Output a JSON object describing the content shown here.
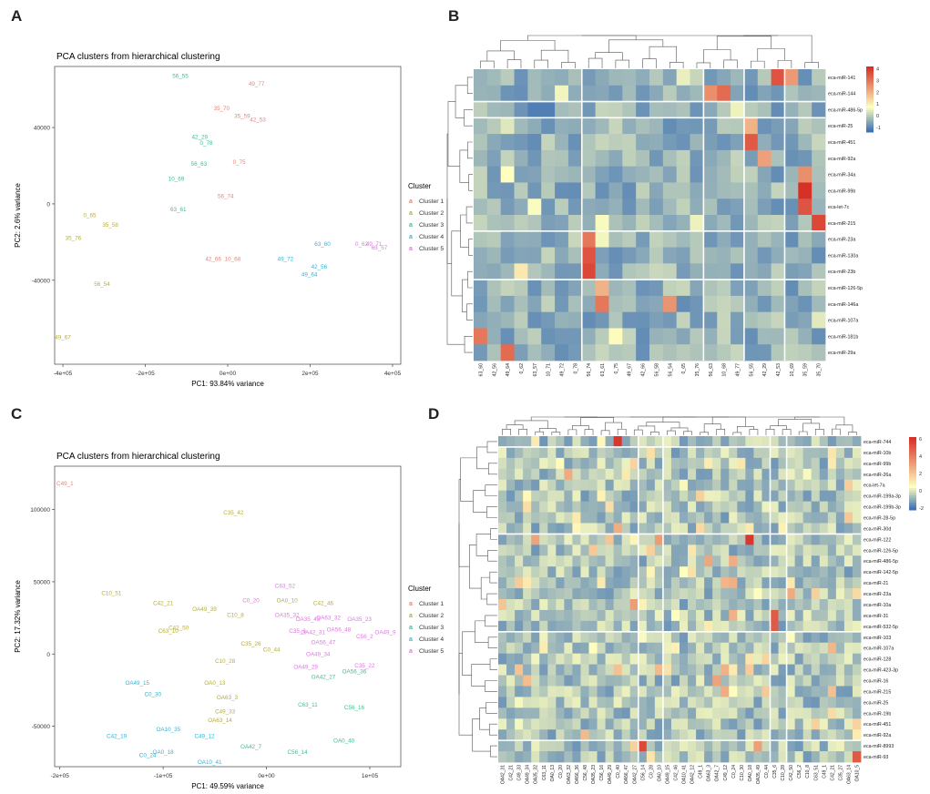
{
  "panels": {
    "A": "A",
    "B": "B",
    "C": "C",
    "D": "D"
  },
  "chart_data": [
    {
      "panel": "A",
      "type": "scatter",
      "title": "PCA clusters from hierarchical clustering",
      "xlabel": "PC1: 93.84% variance",
      "ylabel": "PC2: 2.6% variance",
      "xlim": [
        -420000,
        420000
      ],
      "ylim": [
        -84000,
        72000
      ],
      "xticks": [
        -400000,
        -200000,
        0,
        200000,
        400000
      ],
      "xtick_labels": [
        "-4e+05",
        "-2e+05",
        "0e+00",
        "2e+05",
        "4e+05"
      ],
      "yticks": [
        -40000,
        0,
        40000
      ],
      "ytick_labels": [
        "-40000",
        "0",
        "40000"
      ],
      "legend_title": "Cluster",
      "series": [
        {
          "name": "Cluster 1",
          "color": "#e0877c",
          "points": [
            {
              "label": "49_77",
              "x": 70000,
              "y": 63000
            },
            {
              "label": "35_70",
              "x": -15000,
              "y": 50000
            },
            {
              "label": "35_59",
              "x": 35000,
              "y": 46000
            },
            {
              "label": "42_53",
              "x": 73000,
              "y": 44000
            },
            {
              "label": "0_75",
              "x": 28000,
              "y": 22000
            },
            {
              "label": "56_74",
              "x": -5000,
              "y": 4000
            },
            {
              "label": "42_66",
              "x": -35000,
              "y": -29000
            },
            {
              "label": "10_68",
              "x": 12000,
              "y": -29000
            }
          ]
        },
        {
          "name": "Cluster 2",
          "color": "#b5ad3b",
          "points": [
            {
              "label": "0_65",
              "x": -335000,
              "y": -6000
            },
            {
              "label": "35_58",
              "x": -285000,
              "y": -11000
            },
            {
              "label": "35_76",
              "x": -375000,
              "y": -18000
            },
            {
              "label": "56_54",
              "x": -305000,
              "y": -42000
            },
            {
              "label": "49_67",
              "x": -400000,
              "y": -70000
            }
          ]
        },
        {
          "name": "Cluster 3",
          "color": "#3ebf8c",
          "points": [
            {
              "label": "56_55",
              "x": -115000,
              "y": 67000
            },
            {
              "label": "42_29",
              "x": -68000,
              "y": 35000
            },
            {
              "label": "0_78",
              "x": -52000,
              "y": 32000
            },
            {
              "label": "56_63",
              "x": -70000,
              "y": 21000
            },
            {
              "label": "10_69",
              "x": -125000,
              "y": 13000
            },
            {
              "label": "63_61",
              "x": -120000,
              "y": -3000
            }
          ]
        },
        {
          "name": "Cluster 4",
          "color": "#34b4d2",
          "points": [
            {
              "label": "63_60",
              "x": 230000,
              "y": -21000
            },
            {
              "label": "49_72",
              "x": 140000,
              "y": -29000
            },
            {
              "label": "42_56",
              "x": 222000,
              "y": -33000
            },
            {
              "label": "49_64",
              "x": 198000,
              "y": -37000
            }
          ]
        },
        {
          "name": "Cluster 5",
          "color": "#df78df",
          "points": [
            {
              "label": "0_62",
              "x": 325000,
              "y": -21000
            },
            {
              "label": "49_71",
              "x": 355000,
              "y": -21000
            },
            {
              "label": "63_57",
              "x": 368000,
              "y": -23000
            }
          ]
        }
      ]
    },
    {
      "panel": "B",
      "type": "heatmap",
      "rows": [
        "eca-miR-141",
        "eca-miR-144",
        "eca-miR-486-5p",
        "eca-miR-25",
        "eca-miR-451",
        "eca-miR-92a",
        "eca-miR-34a",
        "eca-miR-99b",
        "eca-let-7c",
        "eca-miR-215",
        "eca-miR-23a",
        "eca-miR-130a",
        "eca-miR-23b",
        "eca-miR-126-5p",
        "eca-miR-146a",
        "eca-miR-107a",
        "eca-miR-181b",
        "eca-miR-29a"
      ],
      "columns": [
        "63_60",
        "42_56",
        "49_64",
        "0_62",
        "63_57",
        "10_71",
        "49_72",
        "0_78",
        "56_74",
        "63_61",
        "0_75",
        "49_67",
        "42_66",
        "56_58",
        "56_54",
        "0_65",
        "35_76",
        "56_63",
        "10_68",
        "49_77",
        "56_55",
        "42_29",
        "42_53",
        "10_69",
        "35_59",
        "35_70"
      ],
      "legend_ticks": [
        -1,
        0,
        1,
        2,
        3,
        4
      ],
      "color_scale": [
        "#3f72b4",
        "#ffffbf",
        "#d73027"
      ],
      "highlights": [
        {
          "row": "eca-miR-141",
          "col": "42_53",
          "value": 3.6
        },
        {
          "row": "eca-miR-141",
          "col": "10_69",
          "value": 2.4
        },
        {
          "row": "eca-miR-144",
          "col": "10_68",
          "value": 3.2
        },
        {
          "row": "eca-miR-144",
          "col": "56_63",
          "value": 2.6
        },
        {
          "row": "eca-miR-486-5p",
          "col": "63_57",
          "value": -1.2
        },
        {
          "row": "eca-miR-486-5p",
          "col": "10_71",
          "value": -1.2
        },
        {
          "row": "eca-miR-25",
          "col": "56_55",
          "value": 2.0
        },
        {
          "row": "eca-miR-451",
          "col": "56_55",
          "value": 3.5
        },
        {
          "row": "eca-miR-92a",
          "col": "42_29",
          "value": 2.3
        },
        {
          "row": "eca-miR-34a",
          "col": "35_59",
          "value": 2.6
        },
        {
          "row": "eca-miR-99b",
          "col": "35_59",
          "value": 4.2
        },
        {
          "row": "eca-let-7c",
          "col": "35_59",
          "value": 3.6
        },
        {
          "row": "eca-miR-215",
          "col": "35_70",
          "value": 3.8
        },
        {
          "row": "eca-miR-23a",
          "col": "56_74",
          "value": 3.0
        },
        {
          "row": "eca-miR-130a",
          "col": "56_74",
          "value": 3.6
        },
        {
          "row": "eca-miR-23b",
          "col": "56_74",
          "value": 3.8
        },
        {
          "row": "eca-miR-126-5p",
          "col": "63_61",
          "value": 2.0
        },
        {
          "row": "eca-miR-146a",
          "col": "63_61",
          "value": 3.0
        },
        {
          "row": "eca-miR-146a",
          "col": "56_54",
          "value": 2.5
        },
        {
          "row": "eca-miR-181b",
          "col": "63_60",
          "value": 3.0
        },
        {
          "row": "eca-miR-29a",
          "col": "49_64",
          "value": 3.2
        }
      ]
    },
    {
      "panel": "C",
      "type": "scatter",
      "title": "PCA clusters from hierarchical clustering",
      "xlabel": "PC1: 49.59% variance",
      "ylabel": "PC2: 17.32% variance",
      "xlim": [
        -205000,
        130000
      ],
      "ylim": [
        -78000,
        130000
      ],
      "xticks": [
        -200000,
        -100000,
        0,
        100000
      ],
      "xtick_labels": [
        "-2e+05",
        "-1e+05",
        "0e+00",
        "1e+05"
      ],
      "yticks": [
        -50000,
        0,
        50000,
        100000
      ],
      "ytick_labels": [
        "-50000",
        "0",
        "50000",
        "100000"
      ],
      "legend_title": "Cluster",
      "series": [
        {
          "name": "Cluster 1",
          "color": "#e0877c",
          "points": [
            {
              "label": "C49_1",
              "x": -195000,
              "y": 118000
            }
          ]
        },
        {
          "name": "Cluster 2",
          "color": "#b5ad3b",
          "points": [
            {
              "label": "C35_42",
              "x": -32000,
              "y": 98000
            },
            {
              "label": "C10_51",
              "x": -150000,
              "y": 42000
            },
            {
              "label": "C42_21",
              "x": -100000,
              "y": 35000
            },
            {
              "label": "OA49_39",
              "x": -60000,
              "y": 31000
            },
            {
              "label": "C10_8",
              "x": -30000,
              "y": 27000
            },
            {
              "label": "OA0_10",
              "x": 20000,
              "y": 37000
            },
            {
              "label": "C42_46",
              "x": 55000,
              "y": 35000
            },
            {
              "label": "C42_50",
              "x": -85000,
              "y": 18000
            },
            {
              "label": "C63_10",
              "x": -95000,
              "y": 16000
            },
            {
              "label": "C35_26",
              "x": -15000,
              "y": 7000
            },
            {
              "label": "C0_44",
              "x": 5000,
              "y": 3000
            },
            {
              "label": "C10_28",
              "x": -40000,
              "y": -5000
            },
            {
              "label": "OA0_13",
              "x": -50000,
              "y": -20000
            },
            {
              "label": "OA63_3",
              "x": -38000,
              "y": -30000
            },
            {
              "label": "C49_33",
              "x": -40000,
              "y": -40000
            },
            {
              "label": "OA63_14",
              "x": -45000,
              "y": -46000
            }
          ]
        },
        {
          "name": "Cluster 3",
          "color": "#3ebf8c",
          "points": [
            {
              "label": "OA42_27",
              "x": 55000,
              "y": -16000
            },
            {
              "label": "OA56_36",
              "x": 85000,
              "y": -12000
            },
            {
              "label": "C63_11",
              "x": 40000,
              "y": -35000
            },
            {
              "label": "C56_16",
              "x": 85000,
              "y": -37000
            },
            {
              "label": "OA0_40",
              "x": 75000,
              "y": -60000
            },
            {
              "label": "C56_14",
              "x": 30000,
              "y": -68000
            },
            {
              "label": "OA42_7",
              "x": -15000,
              "y": -64000
            }
          ]
        },
        {
          "name": "Cluster 4",
          "color": "#34b4d2",
          "points": [
            {
              "label": "OA49_15",
              "x": -125000,
              "y": -20000
            },
            {
              "label": "C0_30",
              "x": -110000,
              "y": -28000
            },
            {
              "label": "OA10_35",
              "x": -95000,
              "y": -52000
            },
            {
              "label": "C42_19",
              "x": -145000,
              "y": -57000
            },
            {
              "label": "C49_12",
              "x": -60000,
              "y": -57000
            },
            {
              "label": "OA0_18",
              "x": -100000,
              "y": -68000
            },
            {
              "label": "C0_24",
              "x": -115000,
              "y": -70000
            },
            {
              "label": "OA10_41",
              "x": -55000,
              "y": -75000
            }
          ]
        },
        {
          "name": "Cluster 5",
          "color": "#df78df",
          "points": [
            {
              "label": "C63_52",
              "x": 18000,
              "y": 47000
            },
            {
              "label": "C0_20",
              "x": -15000,
              "y": 37000
            },
            {
              "label": "OA35_32",
              "x": 20000,
              "y": 27000
            },
            {
              "label": "OA35_43",
              "x": 40000,
              "y": 24000
            },
            {
              "label": "OA63_32",
              "x": 60000,
              "y": 25000
            },
            {
              "label": "OA35_23",
              "x": 90000,
              "y": 24000
            },
            {
              "label": "C35_8",
              "x": 30000,
              "y": 16000
            },
            {
              "label": "OA42_31",
              "x": 45000,
              "y": 15000
            },
            {
              "label": "OA56_48",
              "x": 70000,
              "y": 17000
            },
            {
              "label": "C56_2",
              "x": 95000,
              "y": 12000
            },
            {
              "label": "OA49_9",
              "x": 115000,
              "y": 15000
            },
            {
              "label": "OA56_47",
              "x": 55000,
              "y": 8000
            },
            {
              "label": "OA49_34",
              "x": 50000,
              "y": 0
            },
            {
              "label": "C35_22",
              "x": 95000,
              "y": -8000
            },
            {
              "label": "OA49_29",
              "x": 38000,
              "y": -9000
            }
          ]
        }
      ]
    },
    {
      "panel": "D",
      "type": "heatmap",
      "rows": [
        "eca-miR-744",
        "eca-miR-10b",
        "eca-miR-99b",
        "eca-miR-26a",
        "eca-let-7a",
        "eca-miR-199a-3p",
        "eca-miR-199b-3p",
        "eca-miR-28-5p",
        "eca-miR-30d",
        "eca-miR-122",
        "eca-miR-126-5p",
        "eca-miR-486-5p",
        "eca-miR-142-5p",
        "eca-miR-21",
        "eca-miR-23a",
        "eca-miR-10a",
        "eca-miR-31",
        "eca-miR-532-5p",
        "eca-miR-103",
        "eca-miR-107a",
        "eca-miR-128",
        "eca-miR-423-3p",
        "eca-miR-16",
        "eca-miR-215",
        "eca-miR-25",
        "eca-miR-19b",
        "eca-miR-451",
        "eca-miR-92a",
        "eca-miR-8993",
        "eca-miR-93"
      ],
      "columns": [
        "OA42_31",
        "C42_21",
        "C49_33",
        "OA49_34",
        "OA35_32",
        "C63_11",
        "OA0_13",
        "C0_20",
        "OA63_32",
        "OA56_36",
        "C56_48",
        "OA35_23",
        "C56_16",
        "OA49_29",
        "C0_40",
        "OA56_47",
        "OA42_27",
        "C56_14",
        "C0_28",
        "OA0_10",
        "OA49_15",
        "C42_46",
        "OA10_41",
        "OA42_12",
        "C49_1",
        "OA63_3",
        "OA42_7",
        "C49_12",
        "C0_24",
        "C10_30",
        "OA0_18",
        "OA35_49",
        "C0_44",
        "C35_6",
        "C10_28",
        "C42_50",
        "C56_2",
        "C10_8",
        "C63_51",
        "C49_1",
        "C42_21",
        "C35_27",
        "OA63_14",
        "OA10_5"
      ],
      "legend_ticks": [
        -2,
        0,
        2,
        4,
        6
      ],
      "color_scale": [
        "#3f72b4",
        "#ffffbf",
        "#d73027"
      ],
      "highlights": [
        {
          "row": "eca-miR-744",
          "col": "C0_40",
          "value": 6.0
        },
        {
          "row": "eca-miR-122",
          "col": "OA0_18",
          "value": 6.0
        },
        {
          "row": "eca-miR-31",
          "col": "C35_6",
          "value": 5.0
        },
        {
          "row": "eca-miR-532-5p",
          "col": "C35_6",
          "value": 5.0
        },
        {
          "row": "eca-miR-8993",
          "col": "C56_14",
          "value": 5.5
        },
        {
          "row": "eca-miR-93",
          "col": "OA10_5",
          "value": 5.0
        }
      ]
    }
  ]
}
